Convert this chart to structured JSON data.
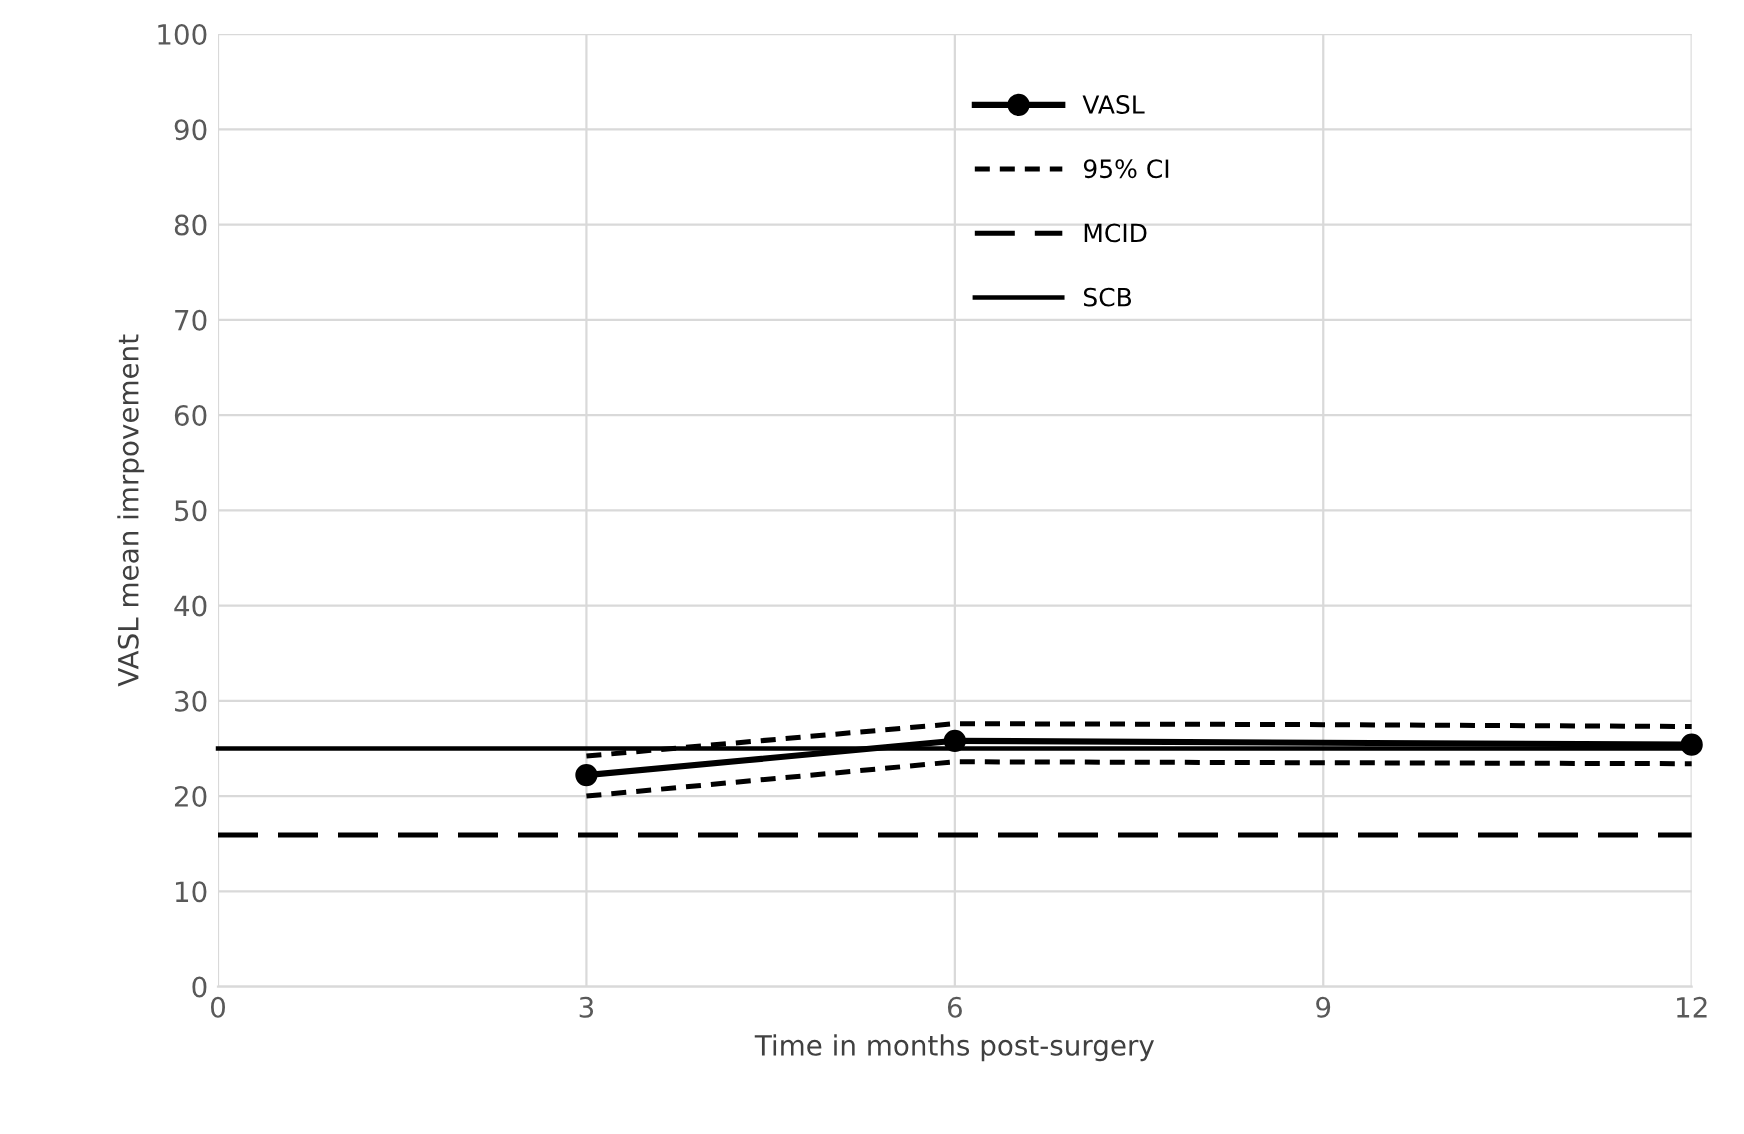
{
  "chart_data": {
    "type": "line",
    "xlabel": "Time in months post-surgery",
    "ylabel": "VASL mean imrpovement",
    "xlim": [
      0,
      12
    ],
    "xticks": [
      0,
      3,
      6,
      9,
      12
    ],
    "ylim": [
      0,
      100
    ],
    "yticks": [
      0,
      10,
      20,
      30,
      40,
      50,
      60,
      70,
      80,
      90,
      100
    ],
    "grid": true,
    "legend": "top",
    "series": [
      {
        "name": "VASL",
        "color": "#000000",
        "x": [
          3,
          6,
          12
        ],
        "values": [
          22.2,
          25.8,
          25.4
        ],
        "marker": "circle",
        "line_style": "solid"
      },
      {
        "name": "95% CI",
        "color": "#000000",
        "x": [
          3,
          6,
          9,
          12
        ],
        "values": [
          24.2,
          27.6,
          27.5,
          27.3
        ],
        "marker": "none",
        "line_style": "dotted"
      },
      {
        "color": "#000000",
        "x": [
          3,
          6,
          9,
          12
        ],
        "values": [
          20.0,
          23.6,
          23.5,
          23.4
        ],
        "marker": "none",
        "line_style": "dotted"
      },
      {
        "name": "MCID",
        "color": "#000000",
        "x": [
          0,
          12
        ],
        "values": [
          15.9,
          15.9
        ],
        "marker": "none",
        "line_style": "dashed"
      },
      {
        "name": "SCB",
        "color": "#000000",
        "x": [
          0,
          12
        ],
        "values": [
          25,
          25
        ],
        "marker": "none",
        "line_style": "solid"
      }
    ]
  }
}
